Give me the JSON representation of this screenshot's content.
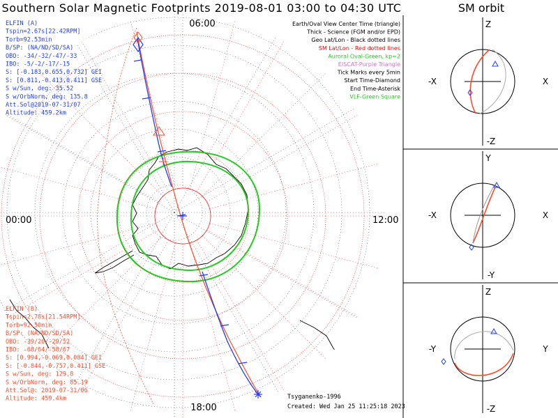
{
  "title": "Southern Solar Magnetic Footprints 2019-08-01 03:00 to 04:30 UTC",
  "sm_orbit_title": "SM orbit",
  "mlt_labels": {
    "top": "06:00",
    "left": "00:00",
    "right": "12:00",
    "bottom": "18:00"
  },
  "elfin_a": {
    "color": "#1f3cff",
    "lines": [
      "ELFIN (A)",
      "Tspin=2.67s[22.42RPM]",
      "Torb=92.53min",
      "B/SP: (NA/ND/SD/SA)",
      "OBO: -34/-32/-47/-33",
      "IBO: -5/-2/-17/-15",
      "S: [-0.183,0.655,0.732] GEI",
      "S: [0.811,-0.413,0.411] GSE",
      "S w/Sun, deg: 35.52",
      "S w/OrbNorm, deg: 135.8",
      "Att.Sol@2019-07-31/07",
      "Altitude: 459.2km"
    ]
  },
  "elfin_b": {
    "color": "#ff4a2a",
    "lines": [
      "ELFIN (B)",
      "Tspin=2.78s[21.54RPM]",
      "Torb=92.50min",
      "B/SP: (NA/ND/SD/SA)",
      "OBO: -39/26/-29/52",
      "IBO: -68/64/-58/67",
      "S: [0.994,-0.069,0.084] GEI",
      "S: [-0.844,-0.757,0.411] GSE",
      "S w/Sun, deg: 129.8",
      "S w/OrbNorm, deg: 85.19",
      "Att.Sol@: 2019-07-31/06",
      "Altitude: 459.4km"
    ]
  },
  "legend": [
    {
      "text": "Earth/Oval View Center Time (triangle)",
      "color": "#000000"
    },
    {
      "text": "Thick - Science (FGM and/or EPD)",
      "color": "#000000"
    },
    {
      "text": "Geo Lat/Lon - Black dotted lines",
      "color": "#000000"
    },
    {
      "text": "SM Lat/Lon - Red dotted lines",
      "color": "#ff0000"
    },
    {
      "text": "Auroral Oval-Green, kp=2",
      "color": "#22cc22"
    },
    {
      "text": "EISCAT-Purple Triangle",
      "color": "#d070d0"
    },
    {
      "text": "Tick Marks every 5min",
      "color": "#000000"
    },
    {
      "text": "Start Time-Diamond",
      "color": "#000000"
    },
    {
      "text": "End Time-Asterisk",
      "color": "#000000"
    },
    {
      "text": "VLF-Green Square",
      "color": "#22cc22"
    }
  ],
  "credits": {
    "model": "Tsyganenko-1996",
    "created": "Created: Wed Jan 25 11:25:18 2023"
  },
  "panels": [
    {
      "top": "Z",
      "bottom": "-Z",
      "left": "-X",
      "right": "X"
    },
    {
      "top": "Y",
      "bottom": "-Y",
      "left": "-X",
      "right": "X"
    },
    {
      "top": "Z",
      "bottom": "-Z",
      "left": "-Y",
      "right": "Y"
    }
  ]
}
